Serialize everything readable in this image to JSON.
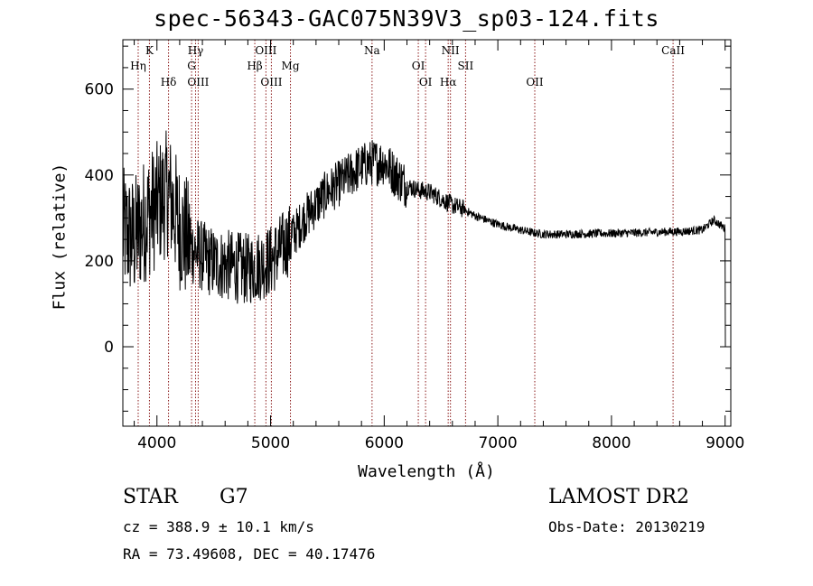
{
  "title": "spec-56343-GAC075N39V3_sp03-124.fits",
  "chart_data": {
    "type": "line",
    "title": "spec-56343-GAC075N39V3_sp03-124.fits",
    "xlabel": "Wavelength (Å)",
    "ylabel": "Flux (relative)",
    "xlim": [
      3700,
      9050
    ],
    "ylim": [
      -185,
      715
    ],
    "xticks": [
      4000,
      5000,
      6000,
      7000,
      8000,
      9000
    ],
    "yticks": [
      0,
      200,
      400,
      600
    ],
    "grid": false,
    "series": [
      {
        "color": "#000000",
        "x": [
          3700,
          3800,
          3900,
          4000,
          4100,
          4200,
          4300,
          4400,
          4500,
          4600,
          4700,
          4800,
          4900,
          5000,
          5100,
          5200,
          5300,
          5400,
          5500,
          5600,
          5700,
          5800,
          5900,
          6000,
          6100,
          6200,
          6300,
          6400,
          6500,
          6600,
          6700,
          6800,
          6900,
          7000,
          7100,
          7200,
          7300,
          7400,
          7500,
          7600,
          7700,
          7800,
          7900,
          8000,
          8100,
          8200,
          8300,
          8400,
          8500,
          8600,
          8700,
          8800,
          8900,
          9000
        ],
        "y": [
          270,
          250,
          300,
          330,
          360,
          280,
          230,
          210,
          195,
          190,
          185,
          180,
          190,
          200,
          230,
          260,
          300,
          330,
          360,
          380,
          400,
          420,
          430,
          430,
          400,
          375,
          365,
          360,
          345,
          330,
          320,
          305,
          295,
          285,
          278,
          272,
          266,
          262,
          262,
          262,
          263,
          263,
          264,
          264,
          265,
          265,
          266,
          267,
          268,
          268,
          270,
          272,
          295,
          275
        ]
      }
    ],
    "lines": [
      {
        "label": "Hη",
        "wavelength": 3835,
        "row": 1
      },
      {
        "label": "K",
        "wavelength": 3934,
        "row": 0
      },
      {
        "label": "Hδ",
        "wavelength": 4102,
        "row": 2
      },
      {
        "label": "Hγ",
        "wavelength": 4340,
        "row": 0
      },
      {
        "label": "G",
        "wavelength": 4305,
        "row": 1
      },
      {
        "label": "OIII",
        "wavelength": 4363,
        "row": 2
      },
      {
        "label": "Hβ",
        "wavelength": 4861,
        "row": 1
      },
      {
        "label": "OIII",
        "wavelength": 4959,
        "row": 0
      },
      {
        "label": "OIII",
        "wavelength": 5007,
        "row": 2
      },
      {
        "label": "Mg",
        "wavelength": 5175,
        "row": 1
      },
      {
        "label": "Na",
        "wavelength": 5893,
        "row": 0
      },
      {
        "label": "OI",
        "wavelength": 6300,
        "row": 1
      },
      {
        "label": "OI",
        "wavelength": 6364,
        "row": 2
      },
      {
        "label": "NII",
        "wavelength": 6583,
        "row": 0
      },
      {
        "label": "Hα",
        "wavelength": 6563,
        "row": 2
      },
      {
        "label": "SII",
        "wavelength": 6716,
        "row": 1
      },
      {
        "label": "OII",
        "wavelength": 7325,
        "row": 2
      },
      {
        "label": "CaII",
        "wavelength": 8542,
        "row": 0
      }
    ],
    "line_color": "#8b1a1a"
  },
  "info": {
    "class": "STAR",
    "subclass": "G7",
    "survey": "LAMOST DR2",
    "cz": "cz = 388.9 ± 10.1 km/s",
    "obs_date": "Obs-Date: 20130219",
    "radec": "RA =  73.49608, DEC =  40.17476"
  }
}
